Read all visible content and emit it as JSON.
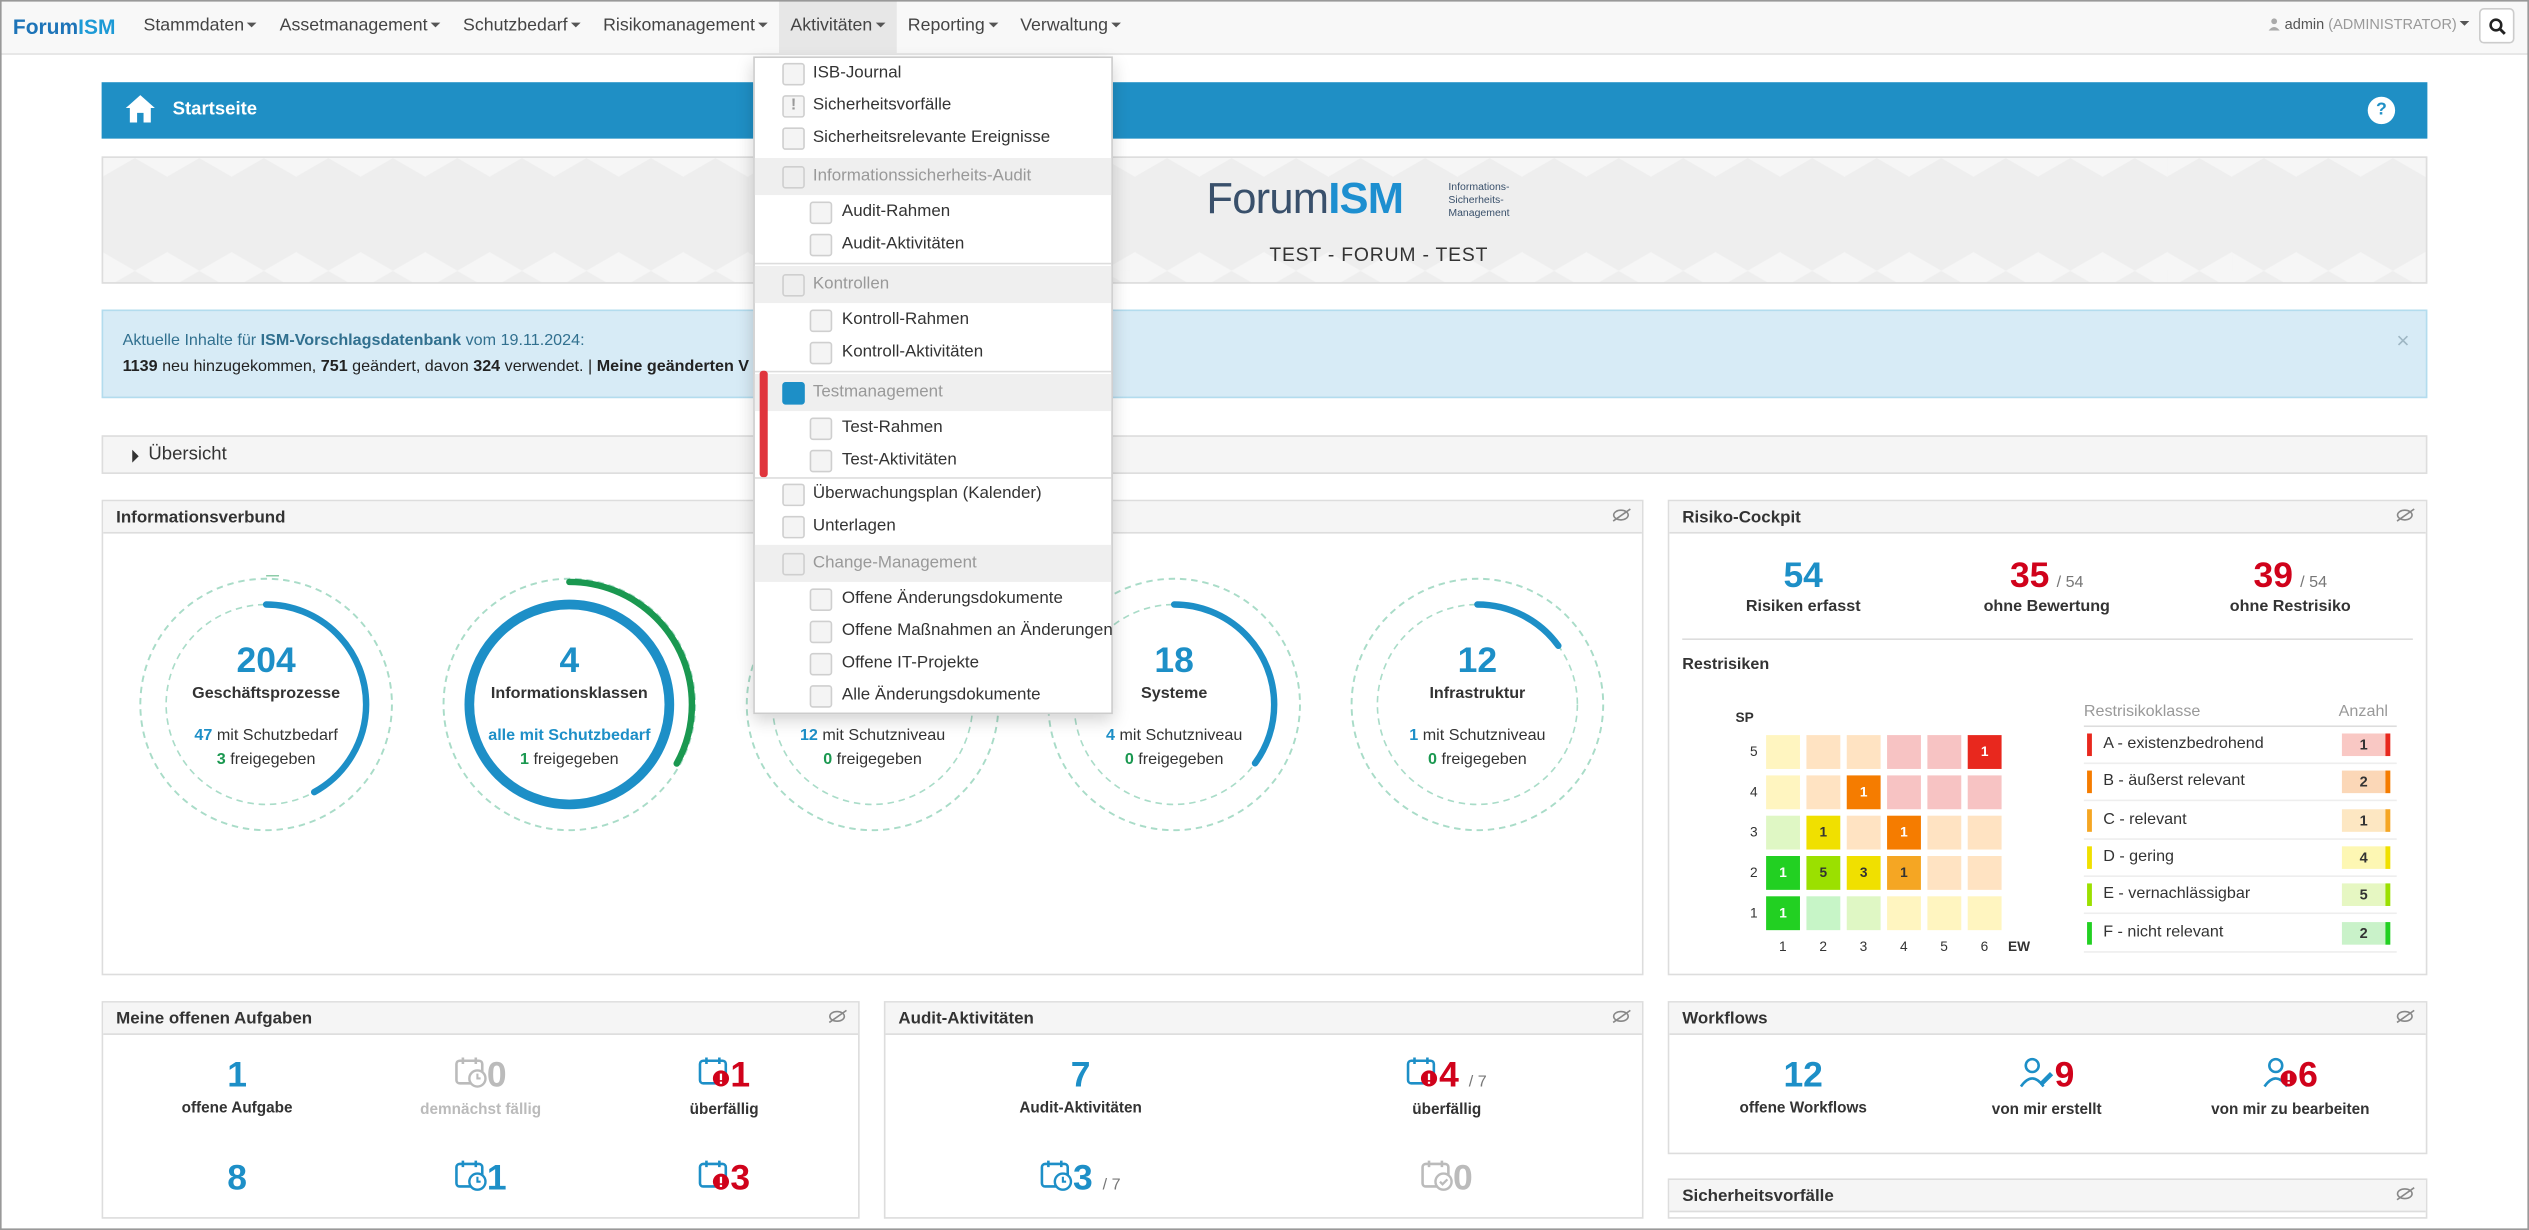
{
  "navbar": {
    "brand_a": "Forum",
    "brand_b": "ISM",
    "items": [
      "Stammdaten",
      "Assetmanagement",
      "Schutzbedarf",
      "Risikomanagement",
      "Aktivitäten",
      "Reporting",
      "Verwaltung"
    ],
    "user": "admin",
    "role": "(ADMINISTRATOR)"
  },
  "titlebar": {
    "title": "Startseite",
    "help": "?"
  },
  "banner": {
    "logo_a": "Forum",
    "logo_b": "ISM",
    "logo_sub": "Informations- Sicherheits- Management",
    "text": "TEST - FORUM - TEST"
  },
  "alert": {
    "l1_a": "Aktuelle Inhalte für ",
    "l1_b": "ISM-Vorschlagsdatenbank",
    "l1_c": " vom 19.11.2024:",
    "n1": "1139",
    "t1": " neu hinzugekommen, ",
    "n2": "751",
    "t2": " geändert, davon ",
    "n3": "324",
    "t3": " verwendet. | ",
    "t4": "Meine geänderten V",
    "close": "×"
  },
  "accordion": {
    "label": "Übersicht"
  },
  "infoverbund": {
    "title": "Informationsverbund",
    "gauges": [
      {
        "value": "204",
        "label": "Geschäftsprozesse",
        "s1_num": "47",
        "s1_text": " mit Schutzbedarf",
        "s2_num": "3",
        "s2_text": " freigegeben"
      },
      {
        "value": "4",
        "label": "Informationsklassen",
        "s1_num": "alle mit Schutzbedarf",
        "s1_text": "",
        "s2_num": "1",
        "s2_text": " freigegeben"
      },
      {
        "value": "",
        "label": "",
        "s1_num": "12",
        "s1_text": " mit Schutzniveau",
        "s2_num": "0",
        "s2_text": " freigegeben"
      },
      {
        "value": "18",
        "label": "Systeme",
        "s1_num": "4",
        "s1_text": " mit Schutzniveau",
        "s2_num": "0",
        "s2_text": " freigegeben"
      },
      {
        "value": "12",
        "label": "Infrastruktur",
        "s1_num": "1",
        "s1_text": " mit Schutzniveau",
        "s2_num": "0",
        "s2_text": " freigegeben"
      }
    ]
  },
  "cockpit": {
    "title": "Risiko-Cockpit",
    "kpis": [
      {
        "value": "54",
        "of": "",
        "caption": "Risiken erfasst"
      },
      {
        "value": "35",
        "of": "/ 54",
        "caption": "ohne Bewertung"
      },
      {
        "value": "39",
        "of": "/ 54",
        "caption": "ohne Restrisiko"
      }
    ],
    "restrisiken": "Restrisiken",
    "y_axis": "SP",
    "x_axis": "EW",
    "y_ticks": [
      "5",
      "4",
      "3",
      "2",
      "1"
    ],
    "x_ticks": [
      "1",
      "2",
      "3",
      "4",
      "5",
      "6"
    ],
    "matrix_counts": [
      [
        "",
        "",
        "",
        "",
        "",
        "1"
      ],
      [
        "",
        "",
        "1",
        "",
        "",
        ""
      ],
      [
        "",
        "1",
        "",
        "1",
        "",
        ""
      ],
      [
        "1",
        "5",
        "3",
        "1",
        "",
        ""
      ],
      [
        "1",
        "",
        "",
        "",
        "",
        ""
      ]
    ],
    "legend_header": "Restrisikoklasse",
    "legend_count_header": "Anzahl",
    "legend": [
      {
        "label": "A - existenzbedrohend",
        "count": "1",
        "color": "#e8281e"
      },
      {
        "label": "B - äußerst relevant",
        "count": "2",
        "color": "#f57c00"
      },
      {
        "label": "C - relevant",
        "count": "1",
        "color": "#f5a623"
      },
      {
        "label": "D - gering",
        "count": "4",
        "color": "#f0e000"
      },
      {
        "label": "E - vernachlässigbar",
        "count": "5",
        "color": "#9be000"
      },
      {
        "label": "F - nicht relevant",
        "count": "2",
        "color": "#22d022"
      }
    ]
  },
  "aufgaben": {
    "title": "Meine offenen Aufgaben",
    "items": [
      {
        "value": "1",
        "caption": "offene Aufgabe"
      },
      {
        "value": "0",
        "caption": "demnächst fällig"
      },
      {
        "value": "1",
        "caption": "überfällig"
      },
      {
        "value": "8",
        "caption": ""
      },
      {
        "value": "1",
        "caption": ""
      },
      {
        "value": "3",
        "caption": ""
      }
    ]
  },
  "audit": {
    "title": "Audit-Aktivitäten",
    "items": [
      {
        "value": "7",
        "of": "",
        "caption": "Audit-Aktivitäten"
      },
      {
        "value": "4",
        "of": "/ 7",
        "caption": "überfällig"
      },
      {
        "value": "3",
        "of": "/ 7",
        "caption": ""
      },
      {
        "value": "0",
        "of": "",
        "caption": ""
      }
    ]
  },
  "workflows": {
    "title": "Workflows",
    "items": [
      {
        "value": "12",
        "caption": "offene Workflows"
      },
      {
        "value": "9",
        "caption": "von mir erstellt"
      },
      {
        "value": "6",
        "caption": "von mir zu bearbeiten"
      }
    ]
  },
  "sicherheitsvorfaelle": {
    "title": "Sicherheitsvorfälle"
  },
  "dropdown": {
    "isb": "ISB-Journal",
    "vorfaelle": "Sicherheitsvorfälle",
    "ereignisse": "Sicherheitsrelevante Ereignisse",
    "audit_hdr": "Informationssicherheits-Audit",
    "audit_rahmen": "Audit-Rahmen",
    "audit_akt": "Audit-Aktivitäten",
    "kontrollen_hdr": "Kontrollen",
    "kontroll_rahmen": "Kontroll-Rahmen",
    "kontroll_akt": "Kontroll-Aktivitäten",
    "test_hdr": "Testmanagement",
    "test_rahmen": "Test-Rahmen",
    "test_akt": "Test-Aktivitäten",
    "plan": "Überwachungsplan (Kalender)",
    "unterlagen": "Unterlagen",
    "change_hdr": "Change-Management",
    "offene_aend": "Offene Änderungsdokumente",
    "offene_mass": "Offene Maßnahmen an Änderungen",
    "offene_it": "Offene IT-Projekte",
    "alle_aend": "Alle Änderungsdokumente"
  }
}
